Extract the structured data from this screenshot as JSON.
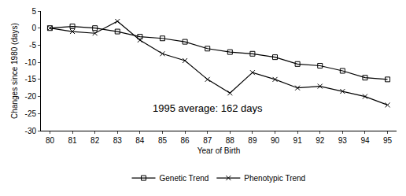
{
  "chart_data": {
    "type": "line",
    "x_label": "Year of Birth",
    "y_label": "Changes since 1980 (days)",
    "annotations": [
      "1995 average: 162 days"
    ],
    "categories": [
      "80",
      "81",
      "82",
      "83",
      "84",
      "85",
      "86",
      "87",
      "88",
      "89",
      "90",
      "91",
      "92",
      "93",
      "94",
      "95"
    ],
    "series": [
      {
        "name": "Genetic Trend",
        "color": "#000000",
        "marker": "square",
        "values": [
          0,
          0.5,
          0,
          -1,
          -2.5,
          -3,
          -4,
          -6,
          -7,
          -7.5,
          -8.5,
          -10.5,
          -11,
          -12.5,
          -14.5,
          -15
        ]
      },
      {
        "name": "Phenotypic Trend",
        "color": "#000000",
        "marker": "x",
        "values": [
          0,
          -1,
          -1.5,
          2,
          -3.5,
          -7.5,
          -9.5,
          -15,
          -19,
          -13,
          -15,
          -17.5,
          -17,
          -18.5,
          -20,
          -22.5
        ]
      }
    ],
    "ylim": [
      -30,
      5
    ],
    "yticks": [
      -30,
      -25,
      -20,
      -15,
      -10,
      -5,
      0,
      5
    ],
    "grid": false,
    "legend": "bottom"
  }
}
